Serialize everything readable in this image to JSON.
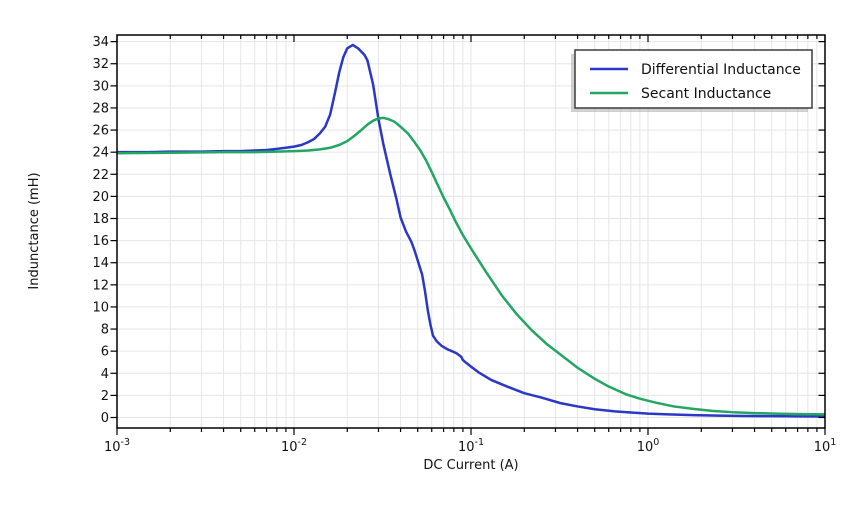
{
  "figure": {
    "xlabel": "DC Current (A)",
    "ylabel": "Indunctance (mH)",
    "background": "#ffffff",
    "grid_color": "#e6e6e6",
    "frame_color": "#000000"
  },
  "legend": {
    "position": "top-right",
    "items": [
      {
        "label": "Differential Inductance",
        "color": "#2b37c6"
      },
      {
        "label": "Secant Inductance",
        "color": "#22a662"
      }
    ]
  },
  "chart_data": {
    "type": "line",
    "xscale": "log",
    "yscale": "linear",
    "xlim": [
      0.001,
      10
    ],
    "ylim": [
      0,
      34
    ],
    "grid": true,
    "xticks": [
      "10⁻³",
      "10⁻²",
      "10⁻¹",
      "10⁰",
      "10¹"
    ],
    "xtick_exponents": [
      "-3",
      "-2",
      "-1",
      "0",
      "1"
    ],
    "yticks": [
      0,
      2,
      4,
      6,
      8,
      10,
      12,
      14,
      16,
      18,
      20,
      22,
      24,
      26,
      28,
      30,
      32,
      34
    ],
    "title": "",
    "xlabel": "DC Current (A)",
    "ylabel": "Indunctance (mH)",
    "series": [
      {
        "name": "Differential Inductance",
        "color": "#2b37c6",
        "line_width": 2.5,
        "points": [
          [
            0.001,
            24.0
          ],
          [
            0.0015,
            24.0
          ],
          [
            0.002,
            24.05
          ],
          [
            0.003,
            24.05
          ],
          [
            0.004,
            24.1
          ],
          [
            0.005,
            24.1
          ],
          [
            0.006,
            24.15
          ],
          [
            0.007,
            24.2
          ],
          [
            0.008,
            24.3
          ],
          [
            0.009,
            24.4
          ],
          [
            0.01,
            24.5
          ],
          [
            0.011,
            24.65
          ],
          [
            0.012,
            24.9
          ],
          [
            0.013,
            25.2
          ],
          [
            0.014,
            25.7
          ],
          [
            0.015,
            26.3
          ],
          [
            0.016,
            27.4
          ],
          [
            0.017,
            29.3
          ],
          [
            0.018,
            31.2
          ],
          [
            0.019,
            32.6
          ],
          [
            0.02,
            33.4
          ],
          [
            0.0215,
            33.7
          ],
          [
            0.023,
            33.4
          ],
          [
            0.025,
            32.8
          ],
          [
            0.026,
            32.3
          ],
          [
            0.028,
            30.1
          ],
          [
            0.03,
            27.0
          ],
          [
            0.032,
            24.7
          ],
          [
            0.035,
            22.0
          ],
          [
            0.038,
            19.7
          ],
          [
            0.04,
            18.1
          ],
          [
            0.043,
            16.8
          ],
          [
            0.046,
            15.9
          ],
          [
            0.048,
            15.1
          ],
          [
            0.05,
            14.2
          ],
          [
            0.053,
            12.9
          ],
          [
            0.055,
            11.4
          ],
          [
            0.057,
            9.7
          ],
          [
            0.059,
            8.4
          ],
          [
            0.061,
            7.4
          ],
          [
            0.064,
            6.9
          ],
          [
            0.068,
            6.5
          ],
          [
            0.073,
            6.2
          ],
          [
            0.078,
            6.0
          ],
          [
            0.083,
            5.8
          ],
          [
            0.088,
            5.5
          ],
          [
            0.09,
            5.2
          ],
          [
            0.093,
            5.0
          ],
          [
            0.1,
            4.6
          ],
          [
            0.11,
            4.1
          ],
          [
            0.13,
            3.4
          ],
          [
            0.16,
            2.8
          ],
          [
            0.2,
            2.2
          ],
          [
            0.25,
            1.8
          ],
          [
            0.32,
            1.3
          ],
          [
            0.4,
            1.0
          ],
          [
            0.5,
            0.75
          ],
          [
            0.65,
            0.55
          ],
          [
            0.8,
            0.45
          ],
          [
            1.0,
            0.35
          ],
          [
            1.3,
            0.28
          ],
          [
            1.8,
            0.22
          ],
          [
            2.5,
            0.17
          ],
          [
            3.5,
            0.14
          ],
          [
            5.0,
            0.12
          ],
          [
            7.0,
            0.1
          ],
          [
            10.0,
            0.09
          ]
        ]
      },
      {
        "name": "Secant Inductance",
        "color": "#22a662",
        "line_width": 2.5,
        "points": [
          [
            0.001,
            23.9
          ],
          [
            0.002,
            23.95
          ],
          [
            0.004,
            24.0
          ],
          [
            0.006,
            24.0
          ],
          [
            0.008,
            24.05
          ],
          [
            0.01,
            24.1
          ],
          [
            0.012,
            24.15
          ],
          [
            0.014,
            24.25
          ],
          [
            0.016,
            24.4
          ],
          [
            0.018,
            24.65
          ],
          [
            0.02,
            25.0
          ],
          [
            0.022,
            25.5
          ],
          [
            0.024,
            26.0
          ],
          [
            0.026,
            26.5
          ],
          [
            0.028,
            26.85
          ],
          [
            0.03,
            27.05
          ],
          [
            0.032,
            27.1
          ],
          [
            0.034,
            27.0
          ],
          [
            0.037,
            26.75
          ],
          [
            0.04,
            26.3
          ],
          [
            0.044,
            25.7
          ],
          [
            0.048,
            24.9
          ],
          [
            0.052,
            24.1
          ],
          [
            0.056,
            23.2
          ],
          [
            0.06,
            22.2
          ],
          [
            0.065,
            21.0
          ],
          [
            0.07,
            19.9
          ],
          [
            0.076,
            18.8
          ],
          [
            0.082,
            17.7
          ],
          [
            0.09,
            16.5
          ],
          [
            0.1,
            15.3
          ],
          [
            0.12,
            13.3
          ],
          [
            0.15,
            11.0
          ],
          [
            0.18,
            9.4
          ],
          [
            0.22,
            7.9
          ],
          [
            0.27,
            6.6
          ],
          [
            0.32,
            5.7
          ],
          [
            0.4,
            4.5
          ],
          [
            0.5,
            3.5
          ],
          [
            0.6,
            2.8
          ],
          [
            0.75,
            2.1
          ],
          [
            0.9,
            1.7
          ],
          [
            1.1,
            1.35
          ],
          [
            1.4,
            1.0
          ],
          [
            1.8,
            0.78
          ],
          [
            2.3,
            0.6
          ],
          [
            3.0,
            0.48
          ],
          [
            4.0,
            0.4
          ],
          [
            5.5,
            0.34
          ],
          [
            7.5,
            0.3
          ],
          [
            10.0,
            0.28
          ]
        ]
      }
    ]
  }
}
